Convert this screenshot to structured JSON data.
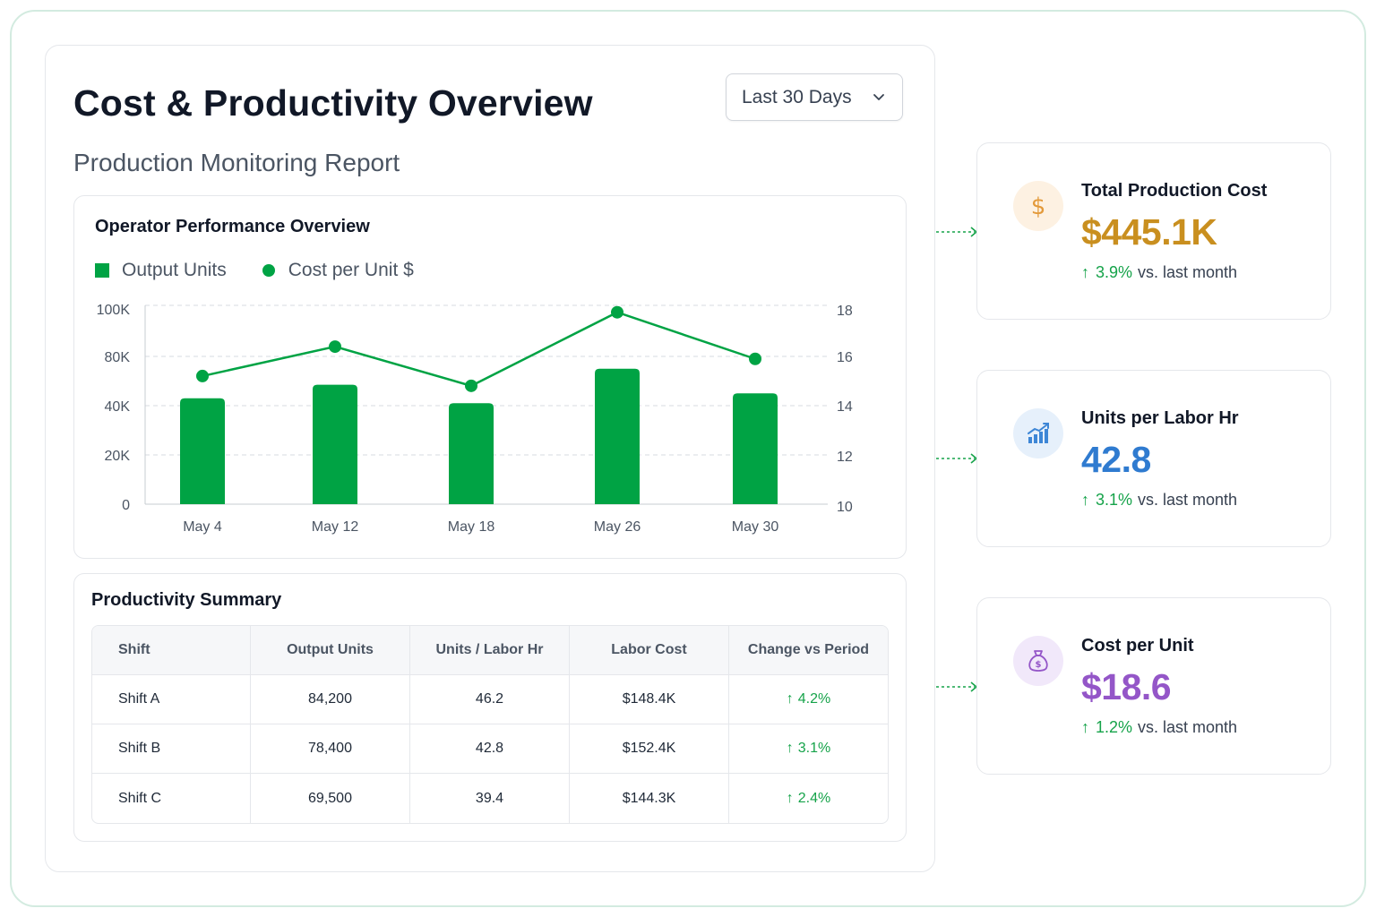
{
  "header": {
    "title": "Cost & Productivity Overview",
    "subtitle": "Production Monitoring Report",
    "range_selector": {
      "selected": "Last 30 Days"
    }
  },
  "chart_card": {
    "title": "Operator Performance Overview",
    "legend": {
      "bars": "Output Units",
      "line": "Cost per Unit $"
    }
  },
  "chart_data": {
    "type": "bar",
    "title": "Operator Performance Overview",
    "categories": [
      "May 4",
      "May 12",
      "May 18",
      "May 26",
      "May 30"
    ],
    "series": [
      {
        "name": "Output Units",
        "type": "bar",
        "axis": "left",
        "values": [
          46000,
          57000,
          42000,
          70000,
          50000
        ]
      },
      {
        "name": "Cost per Unit $",
        "type": "line",
        "axis": "right",
        "values": [
          15.3,
          16.5,
          14.9,
          17.9,
          16.0
        ]
      }
    ],
    "y_left": {
      "ticks": [
        0,
        20000,
        40000,
        80000,
        100000
      ],
      "tick_labels": [
        "0",
        "20K",
        "40K",
        "80K",
        "100K"
      ]
    },
    "y_right": {
      "range": [
        10,
        18
      ],
      "ticks": [
        10,
        12,
        14,
        16,
        18
      ],
      "tick_labels": [
        "10",
        "12",
        "14",
        "16",
        "18"
      ]
    },
    "grid": true,
    "legend_position": "top-left",
    "colors": {
      "bar": "#00a344",
      "line": "#00a344"
    }
  },
  "table": {
    "title": "Productivity Summary",
    "headers": [
      "Shift",
      "Output Units",
      "Units / Labor Hr",
      "Labor Cost",
      "Change vs Period"
    ],
    "rows": [
      {
        "shift": "Shift A",
        "output": "84,200",
        "uplh": "46.2",
        "cost": "$148.4K",
        "change": "4.2%"
      },
      {
        "shift": "Shift B",
        "output": "78,400",
        "uplh": "42.8",
        "cost": "$152.4K",
        "change": "3.1%"
      },
      {
        "shift": "Shift C",
        "output": "69,500",
        "uplh": "39.4",
        "cost": "$144.3K",
        "change": "2.4%"
      }
    ]
  },
  "kpis": [
    {
      "label": "Total Production Cost",
      "value": "$445.1K",
      "change_pct": "3.9%",
      "change_text": "vs. last month",
      "color": "#c98f1f",
      "icon": "dollar-icon",
      "icon_bg": "#fdf1e2"
    },
    {
      "label": "Units per Labor Hr",
      "value": "42.8",
      "change_pct": "3.1%",
      "change_text": "vs. last month",
      "color": "#2f7bd0",
      "icon": "bar-chart-trend-icon",
      "icon_bg": "#e6f0fb"
    },
    {
      "label": "Cost per Unit",
      "value": "$18.6",
      "change_pct": "1.2%",
      "change_text": "vs. last month",
      "color": "#9456c8",
      "icon": "money-bag-icon",
      "icon_bg": "#f1e8fa"
    }
  ],
  "theme": {
    "accent": "#00a344",
    "positive": "#16a34a",
    "frame_border": "#d3ebe0"
  }
}
